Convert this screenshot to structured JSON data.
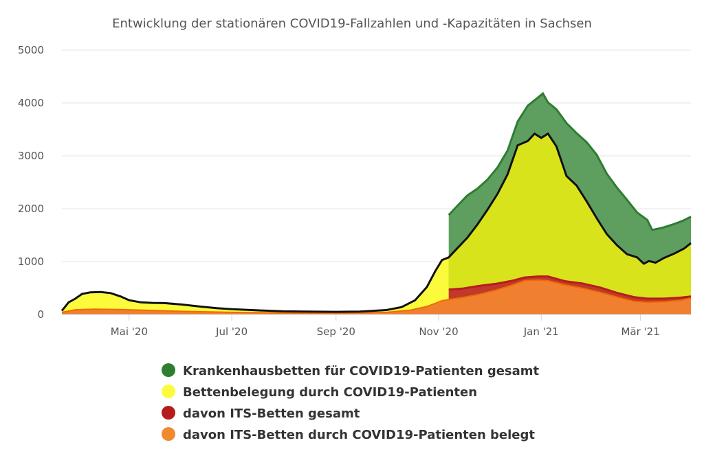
{
  "chart_data": {
    "type": "area",
    "title": "Entwicklung der stationären COVID19-Fallzahlen und -Kapazitäten in Sachsen",
    "xlabel": "",
    "ylabel": "",
    "ylim": [
      0,
      5000
    ],
    "yticks": [
      "0",
      "1000",
      "2000",
      "3000",
      "4000",
      "5000"
    ],
    "xlim": [
      "2020-03-22",
      "2021-03-31"
    ],
    "xticks": [
      {
        "label": "Mai '20",
        "date": "2020-05-01"
      },
      {
        "label": "Jul '20",
        "date": "2020-07-01"
      },
      {
        "label": "Sep '20",
        "date": "2020-09-01"
      },
      {
        "label": "Nov '20",
        "date": "2020-11-01"
      },
      {
        "label": "Jan '21",
        "date": "2021-01-01"
      },
      {
        "label": "Mär '21",
        "date": "2021-03-01"
      }
    ],
    "grid": true,
    "legend": "bottom",
    "series": [
      {
        "name": "Krankenhausbetten für COVID19-Patienten gesamt",
        "color": "#2e7d32",
        "fill": "#5e9e5e",
        "points": [
          [
            "2020-11-07",
            1880
          ],
          [
            "2020-11-12",
            2050
          ],
          [
            "2020-11-18",
            2250
          ],
          [
            "2020-11-24",
            2380
          ],
          [
            "2020-11-30",
            2550
          ],
          [
            "2020-12-06",
            2780
          ],
          [
            "2020-12-12",
            3100
          ],
          [
            "2020-12-18",
            3650
          ],
          [
            "2020-12-24",
            3950
          ],
          [
            "2020-12-28",
            4050
          ],
          [
            "2021-01-02",
            4180
          ],
          [
            "2021-01-05",
            4010
          ],
          [
            "2021-01-10",
            3880
          ],
          [
            "2021-01-16",
            3620
          ],
          [
            "2021-01-22",
            3430
          ],
          [
            "2021-01-28",
            3260
          ],
          [
            "2021-02-03",
            3020
          ],
          [
            "2021-02-09",
            2660
          ],
          [
            "2021-02-15",
            2400
          ],
          [
            "2021-02-21",
            2170
          ],
          [
            "2021-02-27",
            1930
          ],
          [
            "2021-03-05",
            1790
          ],
          [
            "2021-03-08",
            1600
          ],
          [
            "2021-03-14",
            1640
          ],
          [
            "2021-03-20",
            1700
          ],
          [
            "2021-03-26",
            1770
          ],
          [
            "2021-03-31",
            1850
          ]
        ]
      },
      {
        "name": "Bettenbelegung durch COVID19-Patienten",
        "color": "#111111",
        "fill": "#d8e31c",
        "fill_early": "#fbfb3c",
        "points": [
          [
            "2020-03-22",
            70
          ],
          [
            "2020-03-26",
            230
          ],
          [
            "2020-03-30",
            300
          ],
          [
            "2020-04-03",
            390
          ],
          [
            "2020-04-08",
            420
          ],
          [
            "2020-04-14",
            425
          ],
          [
            "2020-04-20",
            405
          ],
          [
            "2020-04-26",
            340
          ],
          [
            "2020-05-01",
            270
          ],
          [
            "2020-05-08",
            230
          ],
          [
            "2020-05-15",
            220
          ],
          [
            "2020-05-22",
            215
          ],
          [
            "2020-06-01",
            190
          ],
          [
            "2020-06-12",
            150
          ],
          [
            "2020-06-22",
            120
          ],
          [
            "2020-07-01",
            100
          ],
          [
            "2020-07-15",
            80
          ],
          [
            "2020-08-01",
            60
          ],
          [
            "2020-08-15",
            55
          ],
          [
            "2020-09-01",
            50
          ],
          [
            "2020-09-15",
            55
          ],
          [
            "2020-10-01",
            85
          ],
          [
            "2020-10-10",
            140
          ],
          [
            "2020-10-18",
            270
          ],
          [
            "2020-10-25",
            520
          ],
          [
            "2020-10-30",
            820
          ],
          [
            "2020-11-03",
            1030
          ],
          [
            "2020-11-07",
            1080
          ],
          [
            "2020-11-12",
            1250
          ],
          [
            "2020-11-18",
            1450
          ],
          [
            "2020-11-24",
            1700
          ],
          [
            "2020-11-30",
            1980
          ],
          [
            "2020-12-06",
            2280
          ],
          [
            "2020-12-12",
            2650
          ],
          [
            "2020-12-18",
            3200
          ],
          [
            "2020-12-24",
            3280
          ],
          [
            "2020-12-28",
            3420
          ],
          [
            "2021-01-01",
            3340
          ],
          [
            "2021-01-05",
            3420
          ],
          [
            "2021-01-10",
            3180
          ],
          [
            "2021-01-16",
            2620
          ],
          [
            "2021-01-22",
            2440
          ],
          [
            "2021-01-28",
            2140
          ],
          [
            "2021-02-03",
            1820
          ],
          [
            "2021-02-09",
            1520
          ],
          [
            "2021-02-15",
            1310
          ],
          [
            "2021-02-21",
            1140
          ],
          [
            "2021-02-27",
            1080
          ],
          [
            "2021-03-03",
            960
          ],
          [
            "2021-03-06",
            1010
          ],
          [
            "2021-03-10",
            980
          ],
          [
            "2021-03-15",
            1070
          ],
          [
            "2021-03-21",
            1150
          ],
          [
            "2021-03-27",
            1250
          ],
          [
            "2021-03-31",
            1350
          ]
        ]
      },
      {
        "name": "davon ITS-Betten gesamt",
        "color": "#b71c1c",
        "fill": "#c0392b",
        "points": [
          [
            "2020-11-07",
            470
          ],
          [
            "2020-11-15",
            490
          ],
          [
            "2020-11-25",
            540
          ],
          [
            "2020-12-05",
            580
          ],
          [
            "2020-12-15",
            640
          ],
          [
            "2020-12-22",
            700
          ],
          [
            "2020-12-30",
            720
          ],
          [
            "2021-01-05",
            720
          ],
          [
            "2021-01-15",
            630
          ],
          [
            "2021-01-25",
            590
          ],
          [
            "2021-02-05",
            510
          ],
          [
            "2021-02-15",
            410
          ],
          [
            "2021-02-25",
            330
          ],
          [
            "2021-03-05",
            300
          ],
          [
            "2021-03-15",
            300
          ],
          [
            "2021-03-25",
            320
          ],
          [
            "2021-03-31",
            340
          ]
        ]
      },
      {
        "name": "davon ITS-Betten durch COVID19-Patienten belegt",
        "color": "#ef6c00",
        "fill": "#f08030",
        "points": [
          [
            "2020-03-22",
            40
          ],
          [
            "2020-03-30",
            90
          ],
          [
            "2020-04-10",
            100
          ],
          [
            "2020-04-25",
            95
          ],
          [
            "2020-05-10",
            80
          ],
          [
            "2020-06-01",
            60
          ],
          [
            "2020-07-01",
            40
          ],
          [
            "2020-08-01",
            30
          ],
          [
            "2020-09-01",
            25
          ],
          [
            "2020-10-01",
            40
          ],
          [
            "2020-10-15",
            80
          ],
          [
            "2020-10-25",
            150
          ],
          [
            "2020-11-03",
            260
          ],
          [
            "2020-11-07",
            280
          ],
          [
            "2020-11-15",
            320
          ],
          [
            "2020-11-25",
            380
          ],
          [
            "2020-12-05",
            460
          ],
          [
            "2020-12-15",
            560
          ],
          [
            "2020-12-22",
            640
          ],
          [
            "2020-12-30",
            650
          ],
          [
            "2021-01-05",
            640
          ],
          [
            "2021-01-15",
            560
          ],
          [
            "2021-01-25",
            500
          ],
          [
            "2021-02-05",
            420
          ],
          [
            "2021-02-15",
            330
          ],
          [
            "2021-02-25",
            250
          ],
          [
            "2021-03-05",
            230
          ],
          [
            "2021-03-15",
            240
          ],
          [
            "2021-03-25",
            270
          ],
          [
            "2021-03-31",
            310
          ]
        ]
      }
    ],
    "legend_colors": [
      "#2e7d32",
      "#fbfb3c",
      "#b71c1c",
      "#f08a30"
    ]
  }
}
